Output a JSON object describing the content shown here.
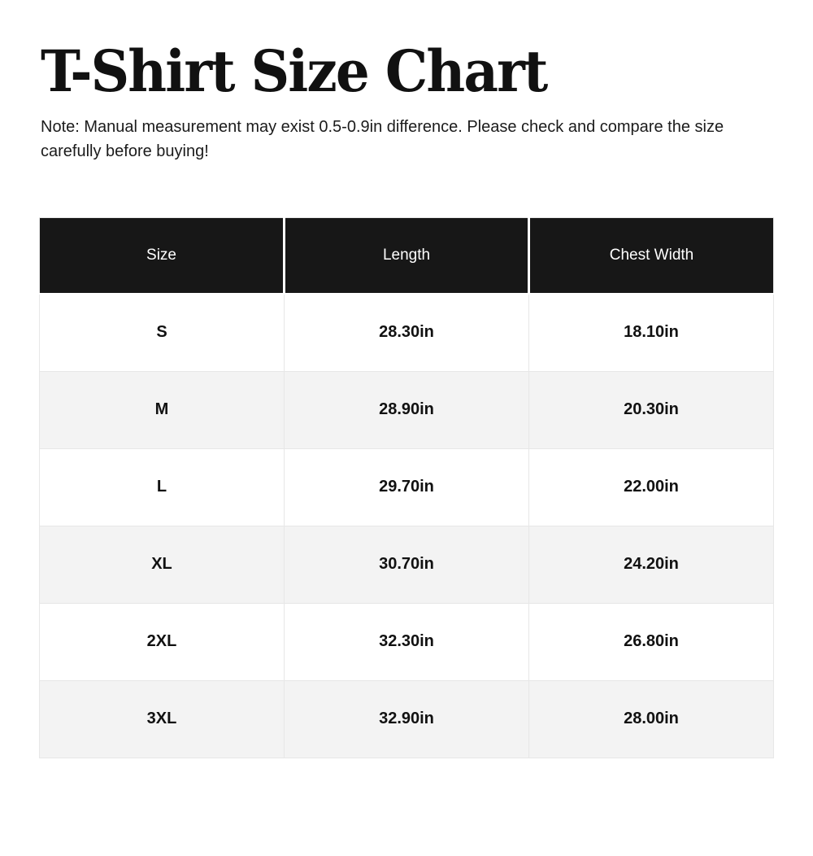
{
  "page": {
    "title": "T-Shirt Size Chart",
    "note": "Note: Manual measurement may exist 0.5-0.9in difference. Please check and compare the size carefully before buying!"
  },
  "chart_data": {
    "type": "table",
    "title": "T-Shirt Size Chart",
    "columns": [
      "Size",
      "Length",
      "Chest Width"
    ],
    "rows": [
      [
        "S",
        "28.30in",
        "18.10in"
      ],
      [
        "M",
        "28.90in",
        "20.30in"
      ],
      [
        "L",
        "29.70in",
        "22.00in"
      ],
      [
        "XL",
        "30.70in",
        "24.20in"
      ],
      [
        "2XL",
        "32.30in",
        "26.80in"
      ],
      [
        "3XL",
        "32.90in",
        "28.00in"
      ]
    ],
    "units": "in",
    "layout_hints": {
      "header_style": "dark",
      "zebra_striping": true,
      "column_count": 3
    }
  },
  "colors": {
    "header_bg": "#171717",
    "header_text": "#ffffff",
    "row_alt_bg": "#f3f3f3",
    "divider": "#e7e7e7"
  }
}
